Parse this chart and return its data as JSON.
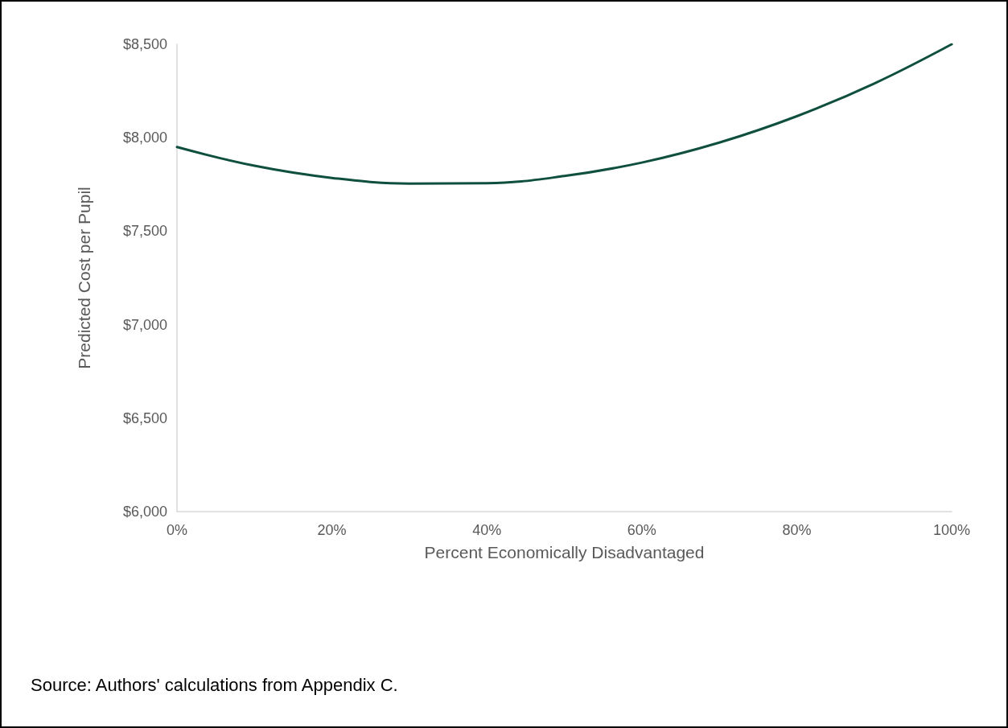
{
  "chart_data": {
    "type": "line",
    "xlabel": "Percent Economically Disadvantaged",
    "ylabel": "Predicted Cost per Pupil",
    "annotations": [
      "Source: Authors' calculations from Appendix C."
    ],
    "x": [
      0,
      10,
      20,
      30,
      40,
      50,
      60,
      70,
      80,
      90,
      100
    ],
    "series": [
      {
        "color": "#0f4f3e",
        "values": [
          7950,
          7850,
          7785,
          7755,
          7757,
          7795,
          7867,
          7974,
          8115,
          8290,
          8500
        ]
      }
    ],
    "xlim": [
      0,
      100
    ],
    "xticks": [
      {
        "value": 0,
        "label": "0%"
      },
      {
        "value": 20,
        "label": "20%"
      },
      {
        "value": 40,
        "label": "40%"
      },
      {
        "value": 60,
        "label": "60%"
      },
      {
        "value": 80,
        "label": "80%"
      },
      {
        "value": 100,
        "label": "100%"
      }
    ],
    "ylim": [
      6000,
      8500
    ],
    "yticks": [
      {
        "value": 6000,
        "label": "$6,000"
      },
      {
        "value": 6500,
        "label": "$6,500"
      },
      {
        "value": 7000,
        "label": "$7,000"
      },
      {
        "value": 7500,
        "label": "$7,500"
      },
      {
        "value": 8000,
        "label": "$8,000"
      },
      {
        "value": 8500,
        "label": "$8,500"
      }
    ],
    "grid": false,
    "marker": "none",
    "line_style": "solid"
  }
}
